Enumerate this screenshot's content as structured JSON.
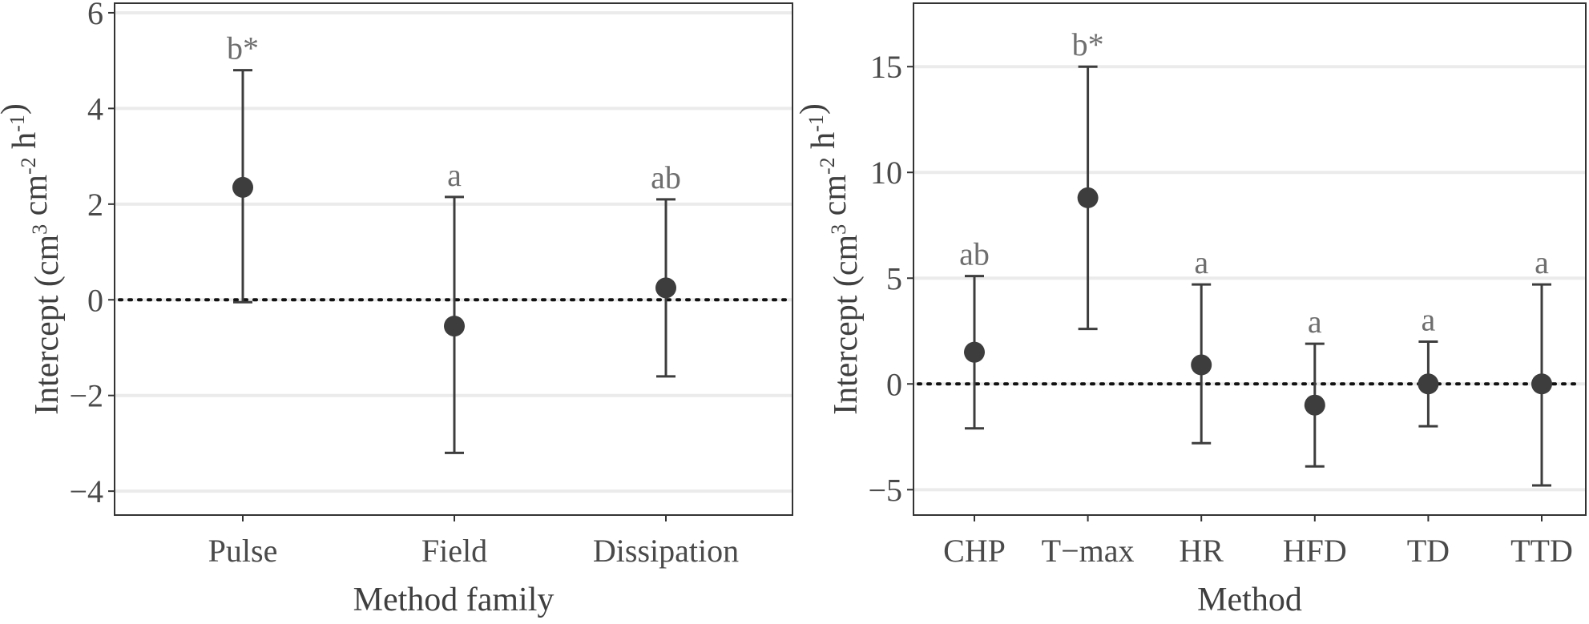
{
  "chart_data": [
    {
      "type": "scatter",
      "xlabel": "Method family",
      "ylabel_text": "Intercept (cm",
      "ylabel_sup1": "3",
      "ylabel_mid": " cm",
      "ylabel_sup2": "-2",
      "ylabel_h": " h",
      "ylabel_sup3": "-1",
      "ylabel_close": ")",
      "ylim": [
        -4.5,
        6.2
      ],
      "yticks": [
        6,
        4,
        2,
        0,
        -2,
        -4
      ],
      "ytick_labels": [
        "6",
        "4",
        "2",
        "0",
        "−2",
        "−4"
      ],
      "categories": [
        "Pulse",
        "Field",
        "Dissipation"
      ],
      "points": [
        {
          "category": "Pulse",
          "estimate": 2.35,
          "lower": -0.05,
          "upper": 4.8,
          "label": "b*"
        },
        {
          "category": "Field",
          "estimate": -0.55,
          "lower": -3.2,
          "upper": 2.15,
          "label": "a"
        },
        {
          "category": "Dissipation",
          "estimate": 0.25,
          "lower": -1.6,
          "upper": 2.1,
          "label": "ab"
        }
      ],
      "reference_line": 0,
      "grid": true
    },
    {
      "type": "scatter",
      "xlabel": "Method",
      "ylabel_text": "Intercept (cm",
      "ylabel_sup1": "3",
      "ylabel_mid": " cm",
      "ylabel_sup2": "-2",
      "ylabel_h": " h",
      "ylabel_sup3": "-1",
      "ylabel_close": ")",
      "ylim": [
        -6.2,
        18.0
      ],
      "yticks": [
        15,
        10,
        5,
        0,
        -5
      ],
      "ytick_labels": [
        "15",
        "10",
        "5",
        "0",
        "−5"
      ],
      "categories": [
        "CHP",
        "T−max",
        "HR",
        "HFD",
        "TD",
        "TTD"
      ],
      "points": [
        {
          "category": "CHP",
          "estimate": 1.5,
          "lower": -2.1,
          "upper": 5.1,
          "label": "ab"
        },
        {
          "category": "T−max",
          "estimate": 8.8,
          "lower": 2.6,
          "upper": 15.0,
          "label": "b*"
        },
        {
          "category": "HR",
          "estimate": 0.9,
          "lower": -2.8,
          "upper": 4.7,
          "label": "a"
        },
        {
          "category": "HFD",
          "estimate": -1.0,
          "lower": -3.9,
          "upper": 1.9,
          "label": "a"
        },
        {
          "category": "TD",
          "estimate": 0.0,
          "lower": -2.0,
          "upper": 2.0,
          "label": "a"
        },
        {
          "category": "TTD",
          "estimate": 0.0,
          "lower": -4.8,
          "upper": 4.7,
          "label": "a"
        }
      ],
      "reference_line": 0,
      "grid": true
    }
  ],
  "colors": {
    "points": "#3d3d3d",
    "letters": "#6e6e6e",
    "grid": "#ebebeb",
    "frame": "#333333"
  }
}
